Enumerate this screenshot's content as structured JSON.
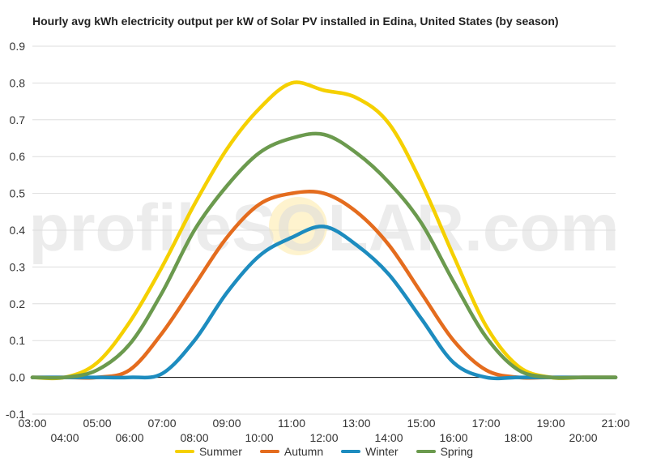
{
  "chart_data": {
    "type": "line",
    "title": "Hourly avg kWh electricity output per kW of Solar PV installed in Edina, United States (by season)",
    "xlabel": "",
    "ylabel": "",
    "x_ticks": [
      "03:00",
      "04:00",
      "05:00",
      "06:00",
      "07:00",
      "08:00",
      "09:00",
      "10:00",
      "11:00",
      "12:00",
      "13:00",
      "14:00",
      "15:00",
      "16:00",
      "17:00",
      "18:00",
      "19:00",
      "20:00",
      "21:00"
    ],
    "y_ticks": [
      "-0.1",
      "0.0",
      "0.1",
      "0.2",
      "0.3",
      "0.4",
      "0.5",
      "0.6",
      "0.7",
      "0.8",
      "0.9"
    ],
    "ylim": [
      -0.1,
      0.9
    ],
    "x_hours": [
      3,
      4,
      5,
      6,
      7,
      8,
      9,
      10,
      11,
      12,
      13,
      14,
      15,
      16,
      17,
      18,
      19,
      20,
      21
    ],
    "grid": true,
    "legend_position": "bottom",
    "series": [
      {
        "name": "Summer",
        "color": "#f5d000",
        "values": [
          0.0,
          0.0,
          0.04,
          0.15,
          0.3,
          0.47,
          0.62,
          0.73,
          0.8,
          0.78,
          0.76,
          0.69,
          0.53,
          0.33,
          0.14,
          0.03,
          0.0,
          0.0,
          0.0
        ]
      },
      {
        "name": "Autumn",
        "color": "#e46c1e",
        "values": [
          0.0,
          0.0,
          0.0,
          0.02,
          0.12,
          0.25,
          0.38,
          0.47,
          0.5,
          0.5,
          0.45,
          0.36,
          0.23,
          0.1,
          0.02,
          0.0,
          0.0,
          0.0,
          0.0
        ]
      },
      {
        "name": "Winter",
        "color": "#1d8cbf",
        "values": [
          0.0,
          0.0,
          0.0,
          0.0,
          0.01,
          0.1,
          0.23,
          0.33,
          0.38,
          0.41,
          0.36,
          0.28,
          0.16,
          0.04,
          0.0,
          0.0,
          0.0,
          0.0,
          0.0
        ]
      },
      {
        "name": "Spring",
        "color": "#6b9a4e",
        "values": [
          0.0,
          0.0,
          0.02,
          0.09,
          0.23,
          0.4,
          0.52,
          0.61,
          0.65,
          0.66,
          0.61,
          0.53,
          0.42,
          0.26,
          0.11,
          0.02,
          0.0,
          0.0,
          0.0
        ]
      }
    ]
  },
  "watermark": "profileSOLAR.com"
}
